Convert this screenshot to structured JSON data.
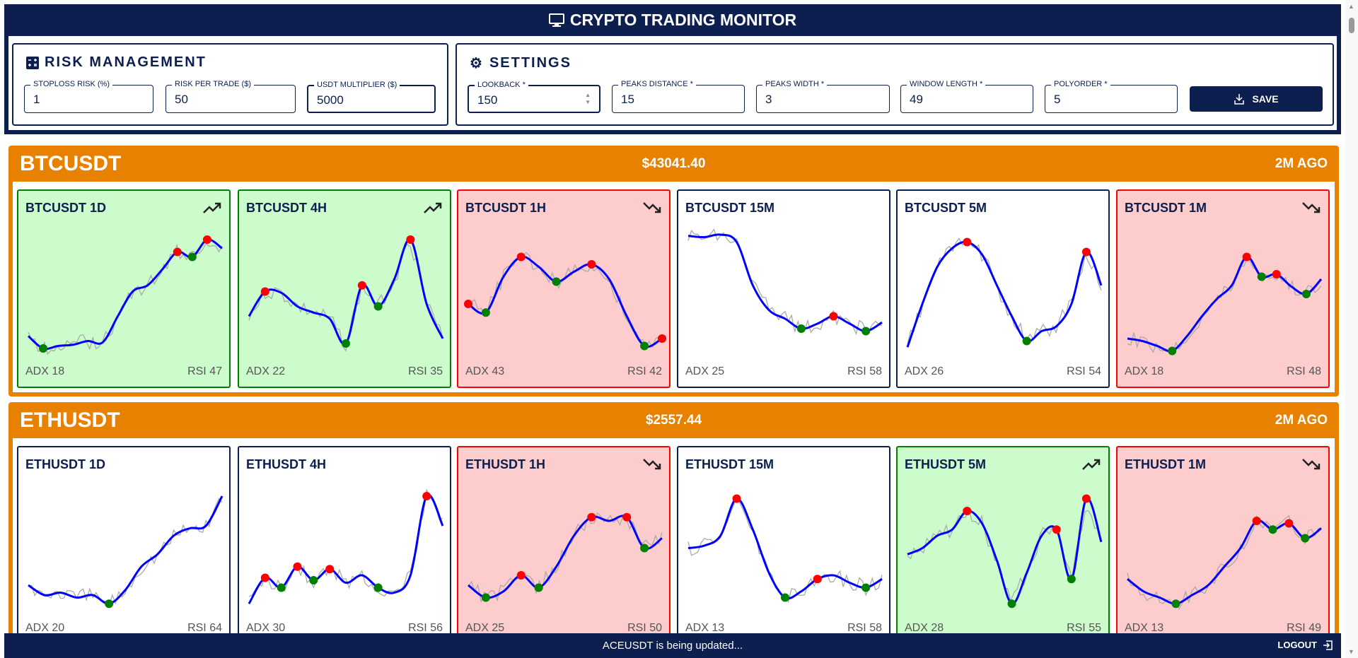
{
  "app": {
    "title": "CRYPTO TRADING MONITOR"
  },
  "risk": {
    "title": "RISK MANAGEMENT",
    "fields": [
      {
        "label": "STOPLOSS RISK (%)",
        "value": "1"
      },
      {
        "label": "RISK PER TRADE ($)",
        "value": "50"
      },
      {
        "label": "USDT MULTIPLIER ($)",
        "value": "5000"
      }
    ]
  },
  "settings": {
    "title": "SETTINGS",
    "fields": [
      {
        "label": "LOOKBACK *",
        "value": "150"
      },
      {
        "label": "PEAKS DISTANCE *",
        "value": "15"
      },
      {
        "label": "PEAKS WIDTH *",
        "value": "3"
      },
      {
        "label": "WINDOW LENGTH *",
        "value": "49"
      },
      {
        "label": "POLYORDER *",
        "value": "5"
      }
    ],
    "save_label": "SAVE"
  },
  "colors": {
    "navy": "#0c1f4e",
    "orange": "#e88000",
    "up_bg": "#ccfccc",
    "down_bg": "#fdcccc",
    "smooth": "#0000ff",
    "raw": "#aaaaaa",
    "peak": "#ff0000",
    "trough": "#008000"
  },
  "sections": [
    {
      "symbol": "BTCUSDT",
      "price": "$43041.40",
      "ago": "2M AGO",
      "cards": [
        {
          "title": "BTCUSDT 1D",
          "state": "up",
          "adx": "ADX 18",
          "rsi": "RSI 47",
          "smooth": [
            14,
            4,
            6,
            7,
            10,
            9,
            30,
            50,
            55,
            68,
            82,
            78,
            92,
            85
          ],
          "peaks": [
            10,
            12
          ],
          "troughs": [
            1,
            11
          ]
        },
        {
          "title": "BTCUSDT 4H",
          "state": "up",
          "adx": "ADX 22",
          "rsi": "RSI 35",
          "smooth": [
            30,
            50,
            49,
            38,
            33,
            28,
            8,
            55,
            38,
            60,
            92,
            40,
            12
          ],
          "peaks": [
            1,
            7,
            10
          ],
          "troughs": [
            6,
            8
          ]
        },
        {
          "title": "BTCUSDT 1H",
          "state": "down",
          "adx": "ADX 43",
          "rsi": "RSI 42",
          "smooth": [
            40,
            33,
            62,
            78,
            70,
            58,
            66,
            72,
            60,
            30,
            6,
            12
          ],
          "peaks": [
            0,
            3,
            7,
            11
          ],
          "troughs": [
            1,
            5,
            10
          ]
        },
        {
          "title": "BTCUSDT 15M",
          "state": "neutral",
          "adx": "ADX 25",
          "rsi": "RSI 58",
          "smooth": [
            95,
            94,
            96,
            90,
            55,
            35,
            28,
            20,
            24,
            30,
            24,
            18,
            25
          ],
          "peaks": [
            9
          ],
          "troughs": [
            7,
            11
          ]
        },
        {
          "title": "BTCUSDT 5M",
          "state": "neutral",
          "adx": "ADX 26",
          "rsi": "RSI 54",
          "smooth": [
            5,
            40,
            70,
            85,
            90,
            80,
            55,
            30,
            10,
            18,
            22,
            40,
            82,
            55
          ],
          "peaks": [
            4,
            12
          ],
          "troughs": [
            8
          ]
        },
        {
          "title": "BTCUSDT 1M",
          "state": "down",
          "adx": "ADX 18",
          "rsi": "RSI 48",
          "smooth": [
            12,
            10,
            6,
            2,
            14,
            30,
            44,
            55,
            78,
            62,
            64,
            54,
            48,
            60
          ],
          "peaks": [
            8,
            10
          ],
          "troughs": [
            3,
            9,
            12
          ]
        }
      ]
    },
    {
      "symbol": "ETHUSDT",
      "price": "$2557.44",
      "ago": "2M AGO",
      "cards": [
        {
          "title": "ETHUSDT 1D",
          "state": "neutral",
          "adx": "ADX 20",
          "rsi": "RSI 64",
          "smooth": [
            20,
            12,
            14,
            10,
            12,
            5,
            16,
            35,
            45,
            60,
            66,
            68,
            92
          ],
          "peaks": [],
          "troughs": [
            5
          ]
        },
        {
          "title": "ETHUSDT 4H",
          "state": "neutral",
          "adx": "ADX 30",
          "rsi": "RSI 56",
          "smooth": [
            5,
            26,
            18,
            35,
            24,
            33,
            22,
            28,
            18,
            14,
            28,
            92,
            68
          ],
          "peaks": [
            1,
            3,
            5,
            11
          ],
          "troughs": [
            2,
            4,
            8
          ]
        },
        {
          "title": "ETHUSDT 1H",
          "state": "down",
          "adx": "ADX 25",
          "rsi": "RSI 50",
          "smooth": [
            20,
            10,
            15,
            28,
            18,
            35,
            60,
            75,
            72,
            75,
            50,
            58
          ],
          "peaks": [
            3,
            7,
            9
          ],
          "troughs": [
            1,
            4,
            10
          ]
        },
        {
          "title": "ETHUSDT 15M",
          "state": "neutral",
          "adx": "ADX 13",
          "rsi": "RSI 58",
          "smooth": [
            50,
            52,
            60,
            90,
            65,
            30,
            10,
            15,
            25,
            28,
            22,
            18,
            25
          ],
          "peaks": [
            3,
            8
          ],
          "troughs": [
            6,
            11
          ]
        },
        {
          "title": "ETHUSDT 5M",
          "state": "up",
          "adx": "ADX 28",
          "rsi": "RSI 55",
          "smooth": [
            45,
            50,
            60,
            65,
            80,
            70,
            40,
            5,
            30,
            60,
            65,
            25,
            90,
            55
          ],
          "peaks": [
            4,
            10,
            12
          ],
          "troughs": [
            7,
            11
          ]
        },
        {
          "title": "ETHUSDT 1M",
          "state": "down",
          "adx": "ADX 13",
          "rsi": "RSI 49",
          "smooth": [
            25,
            15,
            10,
            5,
            12,
            20,
            35,
            50,
            72,
            65,
            70,
            58,
            66
          ],
          "peaks": [
            8,
            10
          ],
          "troughs": [
            3,
            9,
            11
          ]
        }
      ]
    }
  ],
  "footer": {
    "status": "ACEUSDT is being updated...",
    "logout_label": "LOGOUT"
  }
}
